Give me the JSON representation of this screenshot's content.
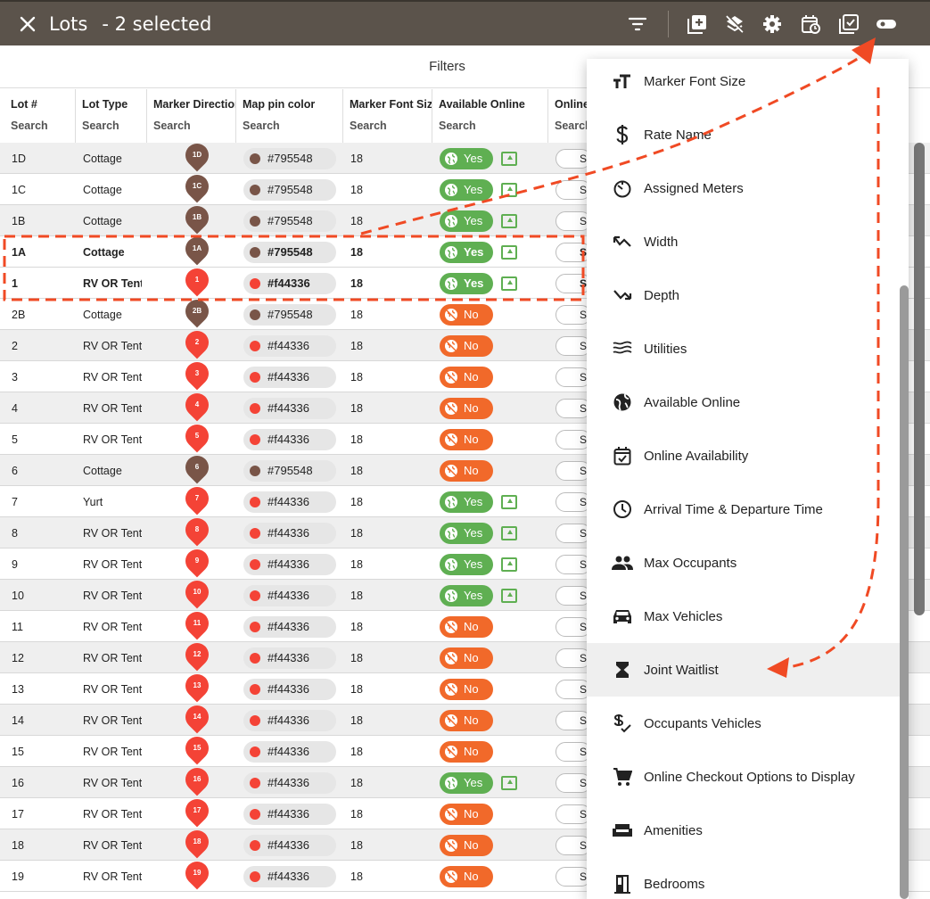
{
  "header": {
    "title": "Lots",
    "selection": "- 2 selected"
  },
  "filters_label": "Filters",
  "columns": [
    {
      "label": "Lot #",
      "search": "Search"
    },
    {
      "label": "Lot Type",
      "search": "Search"
    },
    {
      "label": "Marker Direction",
      "search": "Search"
    },
    {
      "label": "Map pin color",
      "search": "Search"
    },
    {
      "label": "Marker Font Size",
      "search": "Search"
    },
    {
      "label": "Available Online",
      "search": "Search"
    },
    {
      "label": "Online",
      "search": "Search"
    }
  ],
  "rows": [
    {
      "lot": "1D",
      "type": "Cottage",
      "pin": "1D",
      "color": "#795548",
      "font": "18",
      "online": "Yes",
      "bold": false
    },
    {
      "lot": "1C",
      "type": "Cottage",
      "pin": "1C",
      "color": "#795548",
      "font": "18",
      "online": "Yes",
      "bold": false
    },
    {
      "lot": "1B",
      "type": "Cottage",
      "pin": "1B",
      "color": "#795548",
      "font": "18",
      "online": "Yes",
      "bold": false
    },
    {
      "lot": "1A",
      "type": "Cottage",
      "pin": "1A",
      "color": "#795548",
      "font": "18",
      "online": "Yes",
      "bold": true
    },
    {
      "lot": "1",
      "type": "RV OR Tent",
      "pin": "1",
      "color": "#f44336",
      "font": "18",
      "online": "Yes",
      "bold": true
    },
    {
      "lot": "2B",
      "type": "Cottage",
      "pin": "2B",
      "color": "#795548",
      "font": "18",
      "online": "No",
      "bold": false
    },
    {
      "lot": "2",
      "type": "RV OR Tent",
      "pin": "2",
      "color": "#f44336",
      "font": "18",
      "online": "No",
      "bold": false
    },
    {
      "lot": "3",
      "type": "RV OR Tent",
      "pin": "3",
      "color": "#f44336",
      "font": "18",
      "online": "No",
      "bold": false
    },
    {
      "lot": "4",
      "type": "RV OR Tent",
      "pin": "4",
      "color": "#f44336",
      "font": "18",
      "online": "No",
      "bold": false
    },
    {
      "lot": "5",
      "type": "RV OR Tent",
      "pin": "5",
      "color": "#f44336",
      "font": "18",
      "online": "No",
      "bold": false
    },
    {
      "lot": "6",
      "type": "Cottage",
      "pin": "6",
      "color": "#795548",
      "font": "18",
      "online": "No",
      "bold": false
    },
    {
      "lot": "7",
      "type": "Yurt",
      "pin": "7",
      "color": "#f44336",
      "font": "18",
      "online": "Yes",
      "bold": false
    },
    {
      "lot": "8",
      "type": "RV OR Tent",
      "pin": "8",
      "color": "#f44336",
      "font": "18",
      "online": "Yes",
      "bold": false
    },
    {
      "lot": "9",
      "type": "RV OR Tent",
      "pin": "9",
      "color": "#f44336",
      "font": "18",
      "online": "Yes",
      "bold": false
    },
    {
      "lot": "10",
      "type": "RV OR Tent",
      "pin": "10",
      "color": "#f44336",
      "font": "18",
      "online": "Yes",
      "bold": false
    },
    {
      "lot": "11",
      "type": "RV OR Tent",
      "pin": "11",
      "color": "#f44336",
      "font": "18",
      "online": "No",
      "bold": false
    },
    {
      "lot": "12",
      "type": "RV OR Tent",
      "pin": "12",
      "color": "#f44336",
      "font": "18",
      "online": "No",
      "bold": false
    },
    {
      "lot": "13",
      "type": "RV OR Tent",
      "pin": "13",
      "color": "#f44336",
      "font": "18",
      "online": "No",
      "bold": false
    },
    {
      "lot": "14",
      "type": "RV OR Tent",
      "pin": "14",
      "color": "#f44336",
      "font": "18",
      "online": "No",
      "bold": false
    },
    {
      "lot": "15",
      "type": "RV OR Tent",
      "pin": "15",
      "color": "#f44336",
      "font": "18",
      "online": "No",
      "bold": false
    },
    {
      "lot": "16",
      "type": "RV OR Tent",
      "pin": "16",
      "color": "#f44336",
      "font": "18",
      "online": "Yes",
      "bold": false
    },
    {
      "lot": "17",
      "type": "RV OR Tent",
      "pin": "17",
      "color": "#f44336",
      "font": "18",
      "online": "No",
      "bold": false
    },
    {
      "lot": "18",
      "type": "RV OR Tent",
      "pin": "18",
      "color": "#f44336",
      "font": "18",
      "online": "No",
      "bold": false
    },
    {
      "lot": "19",
      "type": "RV OR Tent",
      "pin": "19",
      "color": "#f44336",
      "font": "18",
      "online": "No",
      "bold": false
    }
  ],
  "sbutton_label": "S",
  "menu": {
    "items": [
      {
        "label": "Marker Font Size",
        "icon": "text-size-icon"
      },
      {
        "label": "Rate Name",
        "icon": "dollar-icon"
      },
      {
        "label": "Assigned Meters",
        "icon": "meter-icon"
      },
      {
        "label": "Width",
        "icon": "width-icon"
      },
      {
        "label": "Depth",
        "icon": "depth-icon"
      },
      {
        "label": "Utilities",
        "icon": "waves-icon"
      },
      {
        "label": "Available Online",
        "icon": "globe-icon"
      },
      {
        "label": "Online Availability",
        "icon": "calendar-check-icon"
      },
      {
        "label": "Arrival Time & Departure Time",
        "icon": "clock-icon"
      },
      {
        "label": "Max Occupants",
        "icon": "people-icon"
      },
      {
        "label": "Max Vehicles",
        "icon": "car-icon"
      },
      {
        "label": "Joint Waitlist",
        "icon": "hourglass-icon"
      },
      {
        "label": "Occupants Vehicles",
        "icon": "dollar-check-icon"
      },
      {
        "label": "Online Checkout Options to Display",
        "icon": "cart-icon"
      },
      {
        "label": "Amenities",
        "icon": "sofa-icon"
      },
      {
        "label": "Bedrooms",
        "icon": "door-icon"
      }
    ],
    "highlighted": "Joint Waitlist"
  },
  "colors": {
    "header_bg": "#5b534b",
    "yes": "#5faf52",
    "no": "#f1692a",
    "annotation": "#f04a24"
  }
}
